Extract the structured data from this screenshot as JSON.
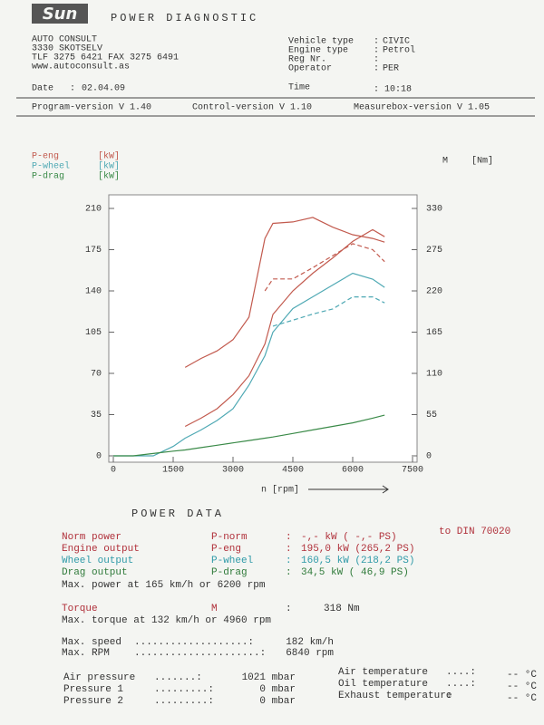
{
  "header": {
    "logo": "Sun",
    "title": "POWER DIAGNOSTIC"
  },
  "company": {
    "lines": [
      "AUTO CONSULT",
      "3330 SKOTSELV",
      "TLF 3275 6421 FAX 3275 6491",
      "www.autoconsult.as"
    ]
  },
  "vehicle": {
    "separator": ":",
    "rows": [
      {
        "label": "Vehicle type",
        "value": "CIVIC"
      },
      {
        "label": "Engine type",
        "value": "Petrol"
      },
      {
        "label": "Reg Nr."
      },
      {
        "label": "Operator",
        "value": "PER"
      }
    ]
  },
  "date": {
    "label": "Date",
    "separator": ":",
    "value": "02.04.09"
  },
  "time": {
    "label": "Time",
    "separator": ":",
    "value": "10:18"
  },
  "versions": [
    "Program-version V 1.40",
    "Control-version V 1.10",
    "Measurebox-version V 1.05"
  ],
  "chart_data": {
    "type": "line",
    "legend": [
      {
        "name": "P-eng",
        "unit": "[kW]",
        "color": "#c25a4e"
      },
      {
        "name": "P-wheel",
        "unit": "[kW]",
        "color": "#4fa9b4"
      },
      {
        "name": "P-drag",
        "unit": "[kW]",
        "color": "#3a8a48"
      }
    ],
    "y2_label": "M",
    "y2_unit": "[Nm]",
    "x_label": "n [rpm]",
    "x": [
      0,
      500,
      1000,
      1500,
      1800,
      2200,
      2600,
      3000,
      3400,
      3800,
      4000,
      4500,
      5000,
      5500,
      6000,
      6500,
      6800
    ],
    "xlim": [
      0,
      7500
    ],
    "xticks": [
      0,
      1500,
      3000,
      4500,
      6000,
      7500
    ],
    "ylim": [
      0,
      210
    ],
    "yticks": [
      0,
      35,
      70,
      105,
      140,
      175,
      210
    ],
    "y2lim": [
      0,
      330
    ],
    "y2ticks": [
      0,
      55,
      110,
      165,
      220,
      275,
      330
    ],
    "series": [
      {
        "name": "P-eng",
        "color": "#c25a4e",
        "dash": false,
        "values": [
          null,
          null,
          null,
          null,
          25,
          32,
          40,
          52,
          68,
          95,
          120,
          140,
          155,
          168,
          182,
          192,
          186
        ]
      },
      {
        "name": "M",
        "axis": "y2",
        "color": "#c25a4e",
        "dash": false,
        "values": [
          null,
          null,
          null,
          null,
          118,
          130,
          140,
          155,
          185,
          290,
          310,
          312,
          318,
          305,
          295,
          290,
          285
        ]
      },
      {
        "axis": "y2",
        "color": "#c25a4e",
        "dash": true,
        "values": [
          null,
          null,
          null,
          null,
          null,
          null,
          null,
          null,
          null,
          220,
          236,
          236,
          251,
          267,
          283,
          275,
          259
        ]
      },
      {
        "name": "P-wheel",
        "color": "#4fa9b4",
        "dash": false,
        "values": [
          0,
          0,
          0,
          8,
          15,
          22,
          30,
          40,
          60,
          85,
          105,
          125,
          135,
          145,
          155,
          150,
          143
        ]
      },
      {
        "axis": "y2",
        "color": "#4fa9b4",
        "dash": true,
        "values": [
          null,
          null,
          null,
          null,
          null,
          null,
          null,
          null,
          null,
          null,
          173,
          181,
          189,
          196,
          212,
          212,
          204
        ]
      },
      {
        "name": "P-drag",
        "color": "#3a8a48",
        "dash": false,
        "values": [
          0,
          0,
          2,
          4,
          5,
          7,
          9,
          11,
          13,
          15,
          16,
          19,
          22,
          25,
          28,
          32,
          34.5
        ]
      }
    ]
  },
  "power_data": {
    "title": "POWER DATA",
    "separator": ":",
    "rows": [
      {
        "label": "Norm power",
        "symbol": "P-norm",
        "value": "-,- kW (  -,- PS)",
        "note": "to DIN 70020",
        "color": "#b0303a"
      },
      {
        "label": "Engine output",
        "symbol": "P-eng",
        "value": "195,0 kW (265,2 PS)",
        "color": "#b0303a"
      },
      {
        "label": "Wheel output",
        "symbol": "P-wheel",
        "value": "160,5 kW (218,2 PS)",
        "color": "#2f9aa8"
      },
      {
        "label": "Drag output",
        "symbol": "P-drag",
        "value": "34,5 kW ( 46,9 PS)",
        "color": "#2f7a3a"
      }
    ],
    "max_power": "Max. power at 165 km/h or 6200 rpm",
    "torque": {
      "label": "Torque",
      "symbol": "M",
      "value": "318 Nm",
      "color": "#b0303a"
    },
    "max_torque": "Max. torque at 132 km/h or 4960 rpm",
    "maxima": [
      {
        "label": "Max. speed",
        "leader": "...................:",
        "value": "182 km/h"
      },
      {
        "label": "Max. RPM",
        "leader": ".....................:",
        "value": "6840 rpm"
      }
    ]
  },
  "ambient": {
    "left": [
      {
        "label": "Air pressure",
        "leader": ".......:",
        "value": "1021 mbar"
      },
      {
        "label": "Pressure 1",
        "leader": ".........:",
        "value": "0 mbar"
      },
      {
        "label": "Pressure 2",
        "leader": ".........:",
        "value": "0 mbar"
      }
    ],
    "right": [
      {
        "label": "Air temperature",
        "leader": "....:",
        "value": "-- °C"
      },
      {
        "label": "Oil temperature",
        "leader": "....:",
        "value": "-- °C"
      },
      {
        "label": "Exhaust temperature",
        "leader": ":",
        "value": "-- °C"
      }
    ]
  }
}
